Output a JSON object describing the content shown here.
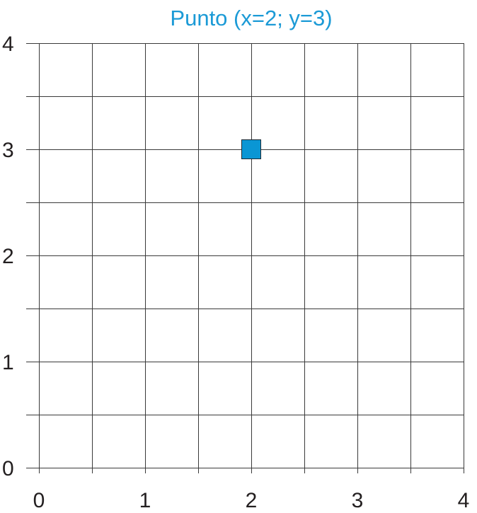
{
  "chart_data": {
    "type": "scatter",
    "title": "Punto (x=2; y=3)",
    "xlabel": "",
    "ylabel": "",
    "xlim": [
      0,
      4
    ],
    "ylim": [
      0,
      4
    ],
    "x_ticks": [
      "0",
      "1",
      "2",
      "3",
      "4"
    ],
    "y_ticks": [
      "0",
      "1",
      "2",
      "3",
      "4"
    ],
    "grid": true,
    "grid_step": 0.5,
    "series": [
      {
        "points": [
          {
            "x": 2,
            "y": 3
          }
        ],
        "marker": "square",
        "color": "#0a96d4"
      }
    ]
  },
  "colors": {
    "title": "#1b9ad6",
    "grid": "#3a3a3a",
    "tick_text": "#231f20"
  }
}
